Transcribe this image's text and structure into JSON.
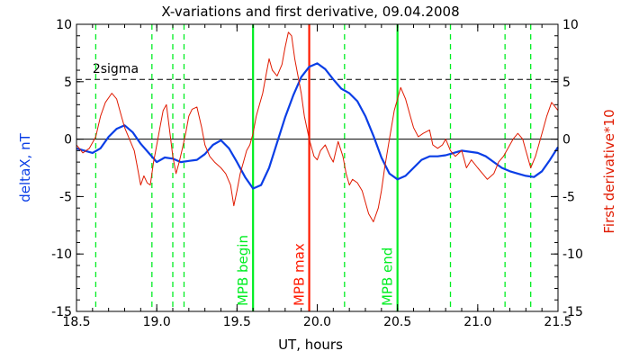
{
  "chart_data": {
    "type": "line",
    "title": "X-variations and first derivative, 09.04.2008",
    "xlabel": "UT, hours",
    "ylabel_left": "deltaX, nT",
    "ylabel_right": "First derivative*10",
    "xlim": [
      18.5,
      21.5
    ],
    "ylim_left": [
      -15,
      10
    ],
    "ylim_right": [
      -15,
      10
    ],
    "x_ticks": [
      "18.5",
      "19.0",
      "19.5",
      "20.0",
      "20.5",
      "21.0",
      "21.5"
    ],
    "y_ticks_left": [
      "10",
      "5",
      "0",
      "-5",
      "-10",
      "-15"
    ],
    "y_ticks_right": [
      "10",
      "5",
      "0",
      "-5",
      "-10",
      "-15"
    ],
    "colors": {
      "deltaX": "#0a3ee6",
      "derivative": "#e01a00",
      "mpb": "#00ee22",
      "max": "#ff1a00",
      "axis": "#000000"
    },
    "sigma_level": 5.2,
    "sigma_label": "2sigma",
    "zero_line": 0,
    "dashed_verticals": [
      18.62,
      18.97,
      19.1,
      19.17,
      20.17,
      20.83,
      21.17,
      21.33
    ],
    "markers": [
      {
        "label": "MPB begin",
        "x": 19.6,
        "color": "#00ee22"
      },
      {
        "label": "MPB max",
        "x": 19.95,
        "color": "#ff1a00"
      },
      {
        "label": "MPB end",
        "x": 20.5,
        "color": "#00ee22"
      }
    ],
    "series": [
      {
        "key": "deltaX",
        "color": "#0a3ee6",
        "x": [
          18.5,
          18.55,
          18.6,
          18.65,
          18.7,
          18.75,
          18.8,
          18.85,
          18.9,
          18.95,
          19.0,
          19.05,
          19.1,
          19.15,
          19.2,
          19.25,
          19.3,
          19.35,
          19.4,
          19.45,
          19.5,
          19.55,
          19.6,
          19.65,
          19.7,
          19.75,
          19.8,
          19.85,
          19.9,
          19.95,
          20.0,
          20.05,
          20.1,
          20.15,
          20.2,
          20.25,
          20.3,
          20.35,
          20.4,
          20.45,
          20.5,
          20.55,
          20.6,
          20.65,
          20.7,
          20.75,
          20.8,
          20.85,
          20.9,
          20.95,
          21.0,
          21.05,
          21.1,
          21.15,
          21.2,
          21.25,
          21.3,
          21.35,
          21.4,
          21.45,
          21.5
        ],
        "values": [
          -0.8,
          -1.0,
          -1.2,
          -0.8,
          0.2,
          0.9,
          1.2,
          0.6,
          -0.4,
          -1.2,
          -2.0,
          -1.6,
          -1.7,
          -2.0,
          -1.9,
          -1.8,
          -1.3,
          -0.5,
          -0.1,
          -0.8,
          -2.0,
          -3.3,
          -4.3,
          -4.0,
          -2.5,
          -0.3,
          1.9,
          3.8,
          5.4,
          6.3,
          6.6,
          6.1,
          5.2,
          4.4,
          4.0,
          3.3,
          2.0,
          0.3,
          -1.6,
          -3.0,
          -3.5,
          -3.2,
          -2.5,
          -1.8,
          -1.5,
          -1.5,
          -1.4,
          -1.2,
          -1.0,
          -1.1,
          -1.2,
          -1.5,
          -2.0,
          -2.5,
          -2.8,
          -3.0,
          -3.2,
          -3.3,
          -2.8,
          -1.8,
          -0.7
        ]
      },
      {
        "key": "derivative",
        "color": "#e01a00",
        "x": [
          18.5,
          18.54,
          18.58,
          18.62,
          18.65,
          18.68,
          18.72,
          18.75,
          18.78,
          18.8,
          18.83,
          18.86,
          18.88,
          18.9,
          18.92,
          18.94,
          18.96,
          18.98,
          19.0,
          19.02,
          19.04,
          19.06,
          19.08,
          19.1,
          19.12,
          19.14,
          19.16,
          19.18,
          19.2,
          19.22,
          19.25,
          19.28,
          19.3,
          19.33,
          19.36,
          19.4,
          19.43,
          19.46,
          19.48,
          19.5,
          19.52,
          19.54,
          19.56,
          19.58,
          19.6,
          19.62,
          19.64,
          19.66,
          19.68,
          19.7,
          19.72,
          19.75,
          19.78,
          19.8,
          19.82,
          19.84,
          19.86,
          19.88,
          19.9,
          19.92,
          19.95,
          19.98,
          20.0,
          20.02,
          20.05,
          20.08,
          20.1,
          20.13,
          20.16,
          20.18,
          20.2,
          20.22,
          20.25,
          20.28,
          20.3,
          20.32,
          20.35,
          20.38,
          20.4,
          20.42,
          20.45,
          20.48,
          20.5,
          20.52,
          20.55,
          20.58,
          20.6,
          20.63,
          20.66,
          20.7,
          20.72,
          20.75,
          20.78,
          20.8,
          20.83,
          20.86,
          20.9,
          20.93,
          20.96,
          21.0,
          21.03,
          21.06,
          21.1,
          21.13,
          21.16,
          21.2,
          21.22,
          21.25,
          21.28,
          21.3,
          21.33,
          21.36,
          21.4,
          21.43,
          21.46,
          21.5
        ],
        "values": [
          -0.5,
          -1.2,
          -0.8,
          0.2,
          2.0,
          3.2,
          4.0,
          3.5,
          2.0,
          1.0,
          0.0,
          -1.0,
          -2.5,
          -4.0,
          -3.2,
          -3.8,
          -4.0,
          -2.0,
          -0.5,
          1.0,
          2.5,
          3.0,
          0.8,
          -1.5,
          -3.0,
          -2.0,
          -0.8,
          0.5,
          2.0,
          2.6,
          2.8,
          1.0,
          -0.5,
          -1.5,
          -2.0,
          -2.5,
          -3.0,
          -4.0,
          -5.8,
          -4.5,
          -3.0,
          -2.0,
          -1.0,
          -0.5,
          0.5,
          2.0,
          3.0,
          4.0,
          5.5,
          7.0,
          6.0,
          5.5,
          6.5,
          8.0,
          9.3,
          9.0,
          7.0,
          5.5,
          4.0,
          2.0,
          0.0,
          -1.5,
          -1.8,
          -1.0,
          -0.5,
          -1.5,
          -2.0,
          -0.2,
          -1.5,
          -3.0,
          -4.0,
          -3.5,
          -3.8,
          -4.5,
          -5.5,
          -6.5,
          -7.2,
          -6.0,
          -4.5,
          -2.5,
          0.0,
          2.5,
          3.5,
          4.5,
          3.5,
          2.0,
          1.0,
          0.2,
          0.5,
          0.8,
          -0.5,
          -0.8,
          -0.5,
          0.0,
          -1.0,
          -1.5,
          -1.0,
          -2.5,
          -1.8,
          -2.5,
          -3.0,
          -3.5,
          -3.0,
          -2.0,
          -1.5,
          -0.5,
          0.0,
          0.5,
          0.0,
          -1.0,
          -2.5,
          -1.5,
          0.5,
          2.0,
          3.2,
          2.5
        ]
      }
    ]
  }
}
